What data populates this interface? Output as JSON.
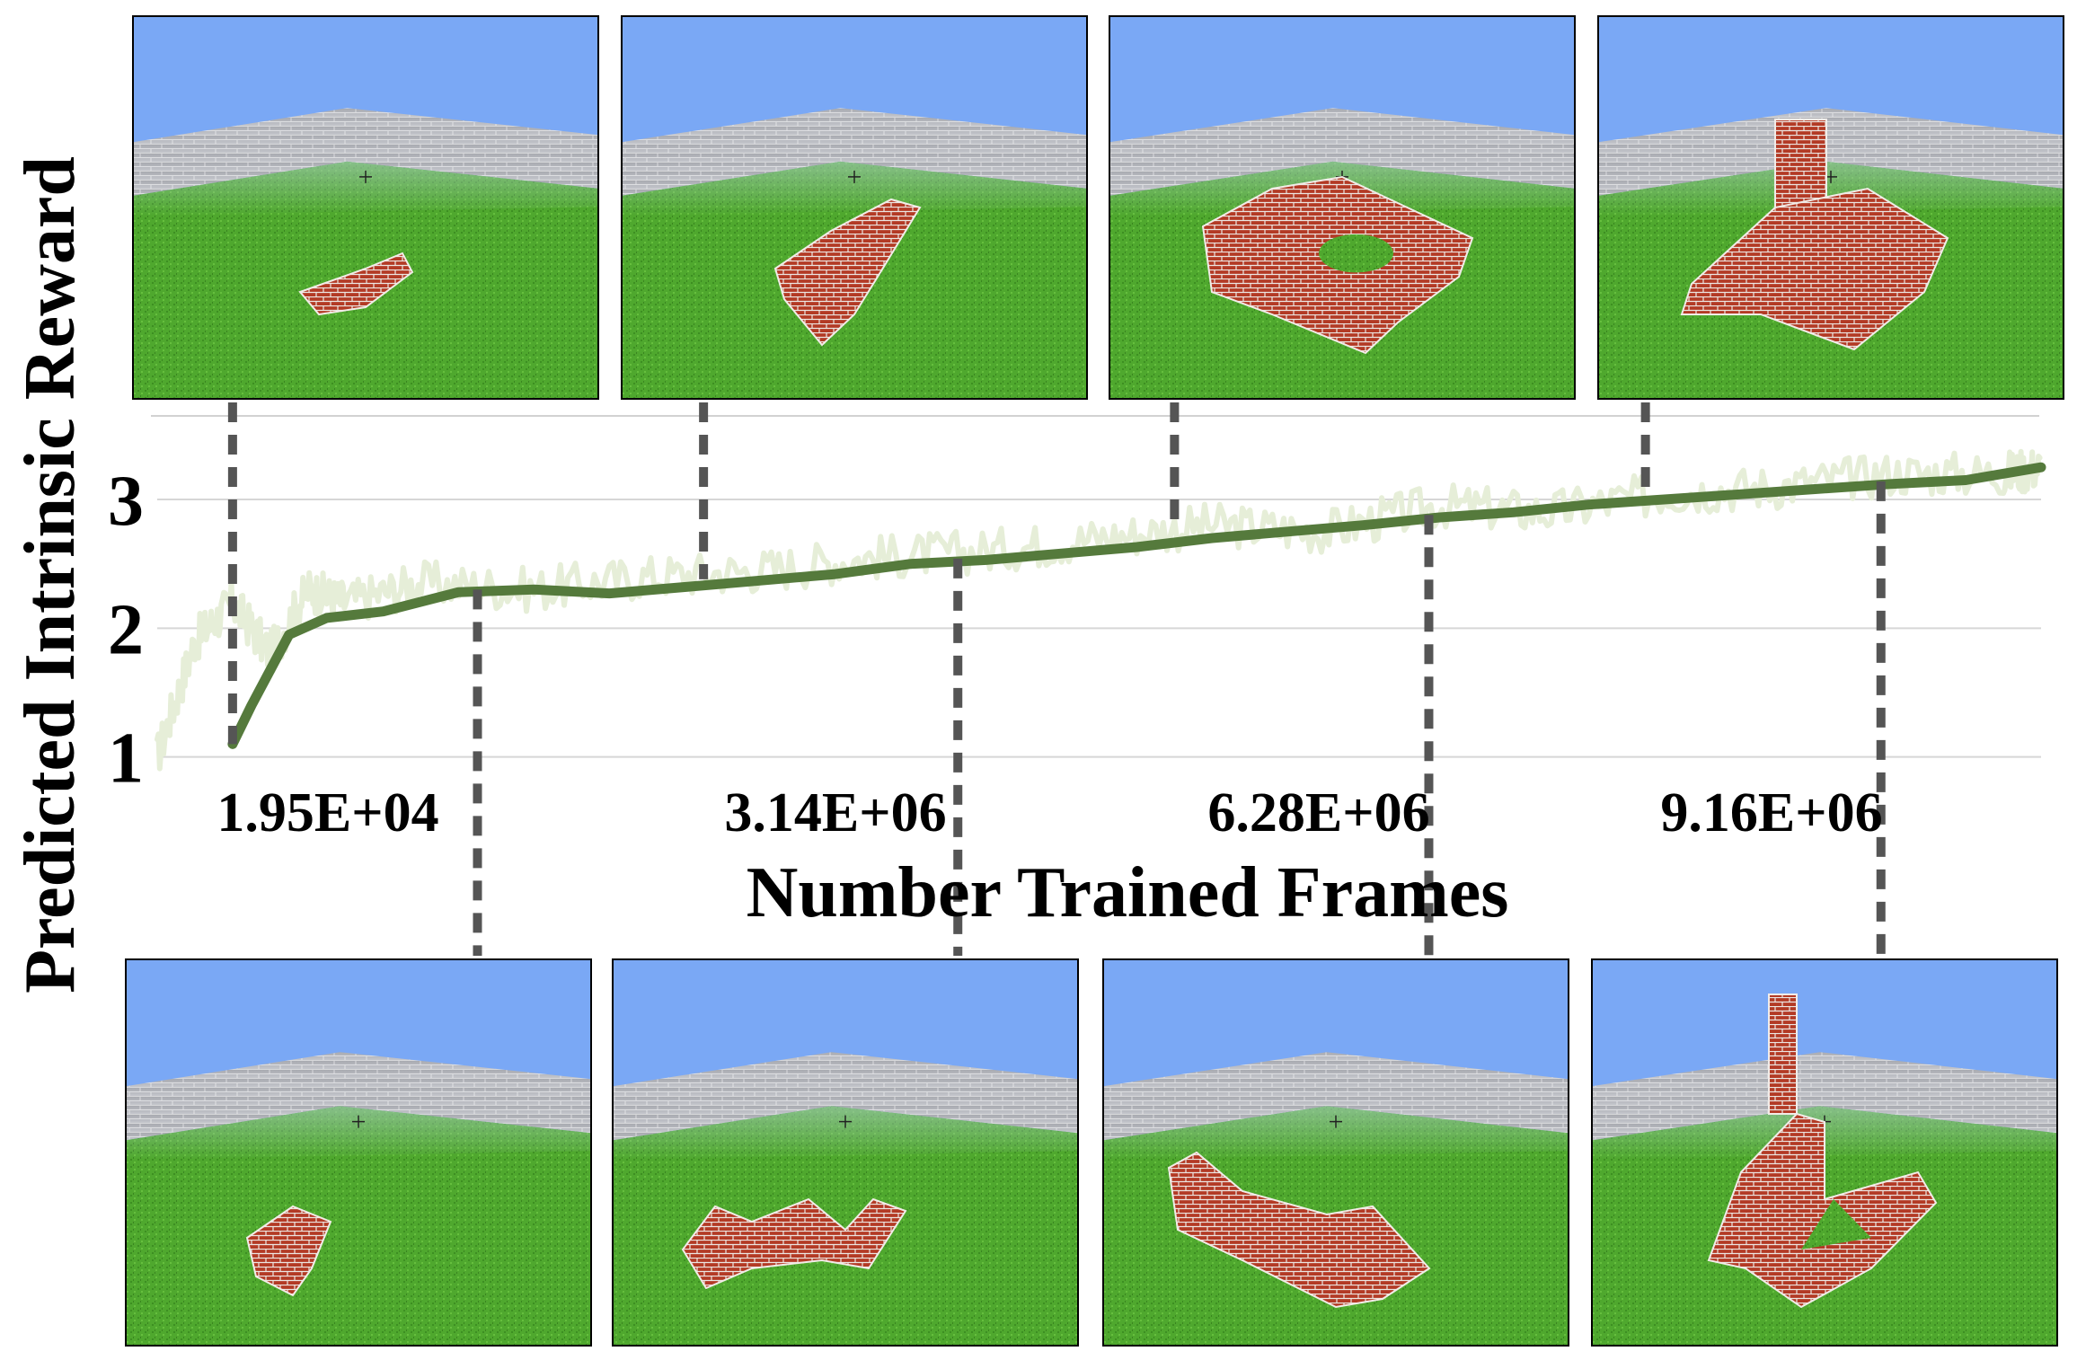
{
  "chart_data": {
    "type": "line",
    "title": "",
    "xlabel": "Number Trained Frames",
    "ylabel": "Predicted Intrinsic Reward",
    "yticks": [
      1,
      2,
      3
    ],
    "ylim": [
      0.6,
      3.6
    ],
    "xlim": [
      0,
      10000000
    ],
    "x_annotations": [
      "1.95E+04",
      "3.14E+06",
      "6.28E+06",
      "9.16E+06"
    ],
    "grid": true,
    "series": [
      {
        "name": "raw",
        "color": "#e6eed8",
        "x": [
          0,
          200000,
          400000,
          600000,
          800000,
          1000000,
          1400000,
          2000000,
          2600000,
          3200000,
          3800000,
          4400000,
          5000000,
          5600000,
          6200000,
          6800000,
          7400000,
          8000000,
          8600000,
          9200000,
          9800000,
          10000000
        ],
        "y": [
          1.0,
          1.9,
          2.2,
          1.8,
          2.3,
          2.2,
          2.35,
          2.3,
          2.4,
          2.45,
          2.55,
          2.6,
          2.7,
          2.8,
          2.75,
          2.95,
          2.9,
          3.05,
          3.1,
          3.2,
          3.2,
          3.25
        ]
      },
      {
        "name": "smoothed",
        "color": "#557a3c",
        "x": [
          400000,
          500000,
          700000,
          900000,
          1200000,
          1600000,
          2000000,
          2400000,
          2800000,
          3200000,
          3600000,
          4000000,
          4400000,
          4800000,
          5200000,
          5600000,
          6000000,
          6400000,
          6800000,
          7200000,
          7600000,
          8000000,
          8400000,
          8800000,
          9200000,
          9600000,
          10000000
        ],
        "y": [
          1.1,
          1.4,
          1.95,
          2.08,
          2.13,
          2.28,
          2.3,
          2.27,
          2.32,
          2.37,
          2.42,
          2.5,
          2.53,
          2.58,
          2.63,
          2.7,
          2.75,
          2.8,
          2.86,
          2.9,
          2.96,
          3.0,
          3.04,
          3.08,
          3.12,
          3.15,
          3.25
        ]
      }
    ]
  },
  "snapshots_top": [
    {
      "name": "snapshot-top-1",
      "x": 400000,
      "y": 1.1
    },
    {
      "name": "snapshot-top-2",
      "x": 2900000,
      "y": 2.38
    },
    {
      "name": "snapshot-top-3",
      "x": 5400000,
      "y": 2.78
    },
    {
      "name": "snapshot-top-4",
      "x": 7900000,
      "y": 3.03
    }
  ],
  "snapshots_bottom": [
    {
      "name": "snapshot-bottom-1",
      "x": 1700000,
      "y": 2.3
    },
    {
      "name": "snapshot-bottom-2",
      "x": 4250000,
      "y": 2.54
    },
    {
      "name": "snapshot-bottom-3",
      "x": 6750000,
      "y": 2.88
    },
    {
      "name": "snapshot-bottom-4",
      "x": 9150000,
      "y": 3.14
    }
  ],
  "colors": {
    "sky": "#7aa8f5",
    "grass": "#4fa82e",
    "wall": "#a9aab0",
    "brick": "#b33a25",
    "connector": "#555555"
  }
}
